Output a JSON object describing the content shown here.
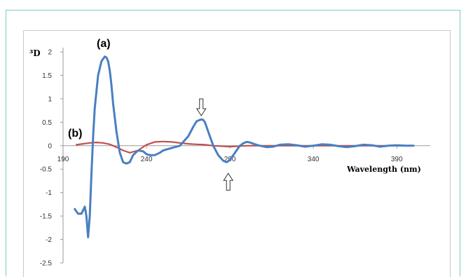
{
  "chart_data": {
    "type": "line",
    "title": "",
    "ylabel": "³D",
    "xlabel": "Wavelength (nm)",
    "xlim": [
      190,
      400
    ],
    "ylim": [
      -2.5,
      2
    ],
    "x_ticks": [
      "190",
      "240",
      "290",
      "340",
      "390"
    ],
    "y_ticks": [
      "2",
      "1.5",
      "1",
      "0.5",
      "0",
      "-0.5",
      "-1",
      "-1.5",
      "-2",
      "-2.5"
    ],
    "grid": false,
    "legend": "none",
    "series": [
      {
        "name": "(a)",
        "color": "#4a7fc1",
        "x": [
          197,
          199,
          201,
          203,
          204,
          205,
          206,
          207,
          208,
          209,
          211,
          213,
          215,
          216,
          217,
          218,
          219,
          220,
          222,
          224,
          226,
          228,
          230,
          232,
          235,
          238,
          240,
          242,
          245,
          248,
          250,
          255,
          260,
          265,
          268,
          270,
          272,
          273,
          274,
          275,
          276,
          278,
          280,
          283,
          286,
          288,
          289,
          290,
          291,
          292,
          294,
          296,
          298,
          300,
          302,
          305,
          308,
          312,
          316,
          320,
          325,
          330,
          335,
          340,
          345,
          350,
          355,
          360,
          365,
          370,
          375,
          380,
          385,
          390,
          395,
          400
        ],
        "y": [
          -1.35,
          -1.45,
          -1.45,
          -1.3,
          -1.5,
          -1.95,
          -1.5,
          -0.6,
          0.2,
          0.8,
          1.5,
          1.8,
          1.9,
          1.88,
          1.8,
          1.6,
          1.3,
          0.9,
          0.3,
          -0.15,
          -0.35,
          -0.38,
          -0.35,
          -0.2,
          -0.1,
          -0.12,
          -0.18,
          -0.2,
          -0.2,
          -0.15,
          -0.1,
          -0.05,
          0.0,
          0.2,
          0.4,
          0.52,
          0.55,
          0.56,
          0.55,
          0.5,
          0.4,
          0.2,
          0.0,
          -0.2,
          -0.32,
          -0.35,
          -0.33,
          -0.3,
          -0.25,
          -0.2,
          -0.1,
          0.0,
          0.05,
          0.08,
          0.07,
          0.03,
          0.0,
          -0.03,
          -0.02,
          0.02,
          0.03,
          0.01,
          -0.02,
          0.0,
          0.03,
          0.02,
          -0.01,
          -0.03,
          -0.01,
          0.02,
          0.01,
          -0.02,
          0.0,
          0.01,
          0.0,
          0.0
        ]
      },
      {
        "name": "(b)",
        "color": "#c0504d",
        "x": [
          198,
          202,
          206,
          210,
          214,
          218,
          222,
          226,
          230,
          235,
          240,
          245,
          250,
          255,
          260,
          265,
          270,
          275,
          280,
          290,
          300,
          320,
          340,
          360,
          380,
          400
        ],
        "y": [
          0.02,
          0.04,
          0.06,
          0.07,
          0.06,
          0.03,
          -0.03,
          -0.1,
          -0.15,
          -0.1,
          0.02,
          0.08,
          0.09,
          0.08,
          0.06,
          0.04,
          0.03,
          0.02,
          0.0,
          -0.02,
          0.0,
          0.0,
          0.0,
          0.0,
          0.0,
          0.0
        ]
      }
    ],
    "annotations": [
      {
        "type": "arrow-down",
        "x": 272,
        "y": 0.55
      },
      {
        "type": "arrow-up",
        "x": 289,
        "y": -0.35
      }
    ]
  }
}
